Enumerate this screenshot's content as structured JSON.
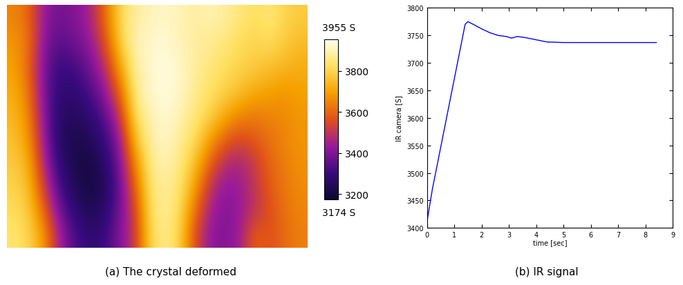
{
  "chart_data": [
    {
      "type": "heatmap",
      "caption": "(a) The crystal deformed",
      "cells": [
        [
          3650,
          3600,
          3420,
          3380,
          3400,
          3450,
          3600,
          3800,
          3880,
          3900,
          3920,
          3900,
          3880,
          3900,
          3880,
          3850,
          3820,
          3850,
          3800,
          3780
        ],
        [
          3680,
          3620,
          3400,
          3350,
          3380,
          3420,
          3550,
          3780,
          3900,
          3920,
          3930,
          3900,
          3880,
          3870,
          3850,
          3820,
          3800,
          3820,
          3780,
          3750
        ],
        [
          3700,
          3600,
          3380,
          3300,
          3320,
          3380,
          3480,
          3700,
          3880,
          3920,
          3940,
          3920,
          3880,
          3850,
          3820,
          3800,
          3780,
          3760,
          3740,
          3720
        ],
        [
          3720,
          3620,
          3380,
          3280,
          3280,
          3330,
          3420,
          3600,
          3860,
          3920,
          3940,
          3920,
          3870,
          3830,
          3800,
          3760,
          3720,
          3700,
          3680,
          3700
        ],
        [
          3740,
          3650,
          3400,
          3260,
          3250,
          3280,
          3350,
          3500,
          3820,
          3900,
          3930,
          3900,
          3850,
          3800,
          3720,
          3660,
          3640,
          3650,
          3660,
          3680
        ],
        [
          3760,
          3680,
          3420,
          3250,
          3220,
          3240,
          3300,
          3420,
          3750,
          3880,
          3920,
          3880,
          3820,
          3700,
          3600,
          3550,
          3580,
          3620,
          3650,
          3680
        ],
        [
          3780,
          3720,
          3460,
          3280,
          3220,
          3200,
          3260,
          3380,
          3650,
          3860,
          3900,
          3860,
          3760,
          3600,
          3480,
          3460,
          3520,
          3600,
          3640,
          3670
        ],
        [
          3800,
          3750,
          3520,
          3320,
          3240,
          3200,
          3240,
          3360,
          3580,
          3840,
          3880,
          3840,
          3700,
          3500,
          3420,
          3440,
          3500,
          3580,
          3630,
          3660
        ],
        [
          3820,
          3780,
          3600,
          3380,
          3280,
          3230,
          3260,
          3380,
          3520,
          3820,
          3880,
          3820,
          3620,
          3450,
          3400,
          3430,
          3500,
          3560,
          3620,
          3650
        ],
        [
          3840,
          3800,
          3680,
          3450,
          3330,
          3280,
          3300,
          3400,
          3500,
          3800,
          3870,
          3800,
          3560,
          3420,
          3400,
          3440,
          3600,
          3560,
          3610,
          3640
        ]
      ],
      "color_range": [
        3174,
        3955
      ],
      "color_range_labels": [
        "3174 S",
        "3955 S"
      ],
      "color_ticks": [
        3200,
        3400,
        3600,
        3800
      ]
    },
    {
      "type": "line",
      "caption": "(b) IR signal",
      "xlabel": "time [sec]",
      "ylabel": "IR camera [S]",
      "x": [
        0,
        0.2,
        0.4,
        0.6,
        0.8,
        1.0,
        1.2,
        1.4,
        1.5,
        1.7,
        2.0,
        2.3,
        2.6,
        2.9,
        3.1,
        3.3,
        3.6,
        4.0,
        4.4,
        5.0,
        6.0,
        7.0,
        8.0,
        8.4
      ],
      "values": [
        3410,
        3470,
        3520,
        3570,
        3620,
        3670,
        3720,
        3770,
        3775,
        3770,
        3762,
        3755,
        3750,
        3748,
        3745,
        3748,
        3746,
        3742,
        3738,
        3737,
        3737,
        3737,
        3737,
        3737
      ],
      "color": "#0000ff",
      "xlim": [
        0,
        9
      ],
      "xticks": [
        0,
        1,
        2,
        3,
        4,
        5,
        6,
        7,
        8,
        9
      ],
      "ylim": [
        3400,
        3800
      ],
      "yticks": [
        3400,
        3450,
        3500,
        3550,
        3600,
        3650,
        3700,
        3750,
        3800
      ]
    }
  ]
}
